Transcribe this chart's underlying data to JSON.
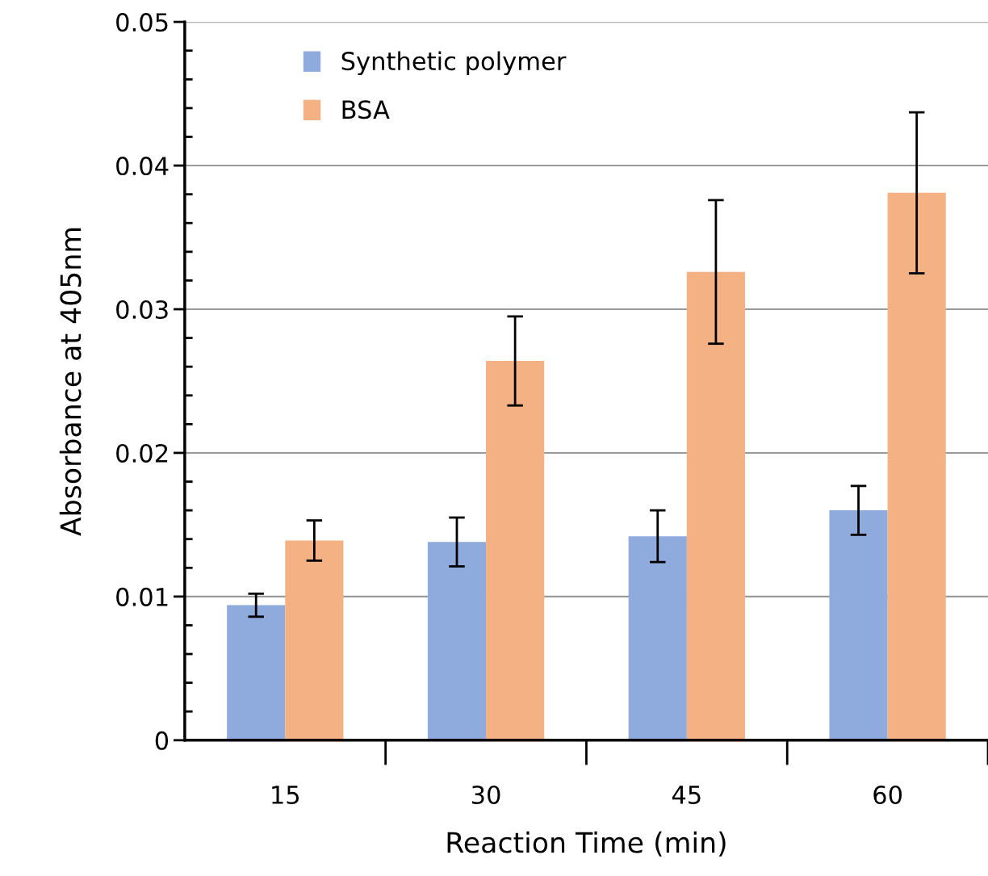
{
  "chart_data": {
    "type": "bar",
    "xlabel": "Reaction Time (min)",
    "ylabel": "Absorbance at 405nm",
    "categories": [
      "15",
      "30",
      "45",
      "60"
    ],
    "series": [
      {
        "name": "Synthetic polymer",
        "color": "#8faadc",
        "values": [
          0.0094,
          0.0138,
          0.0142,
          0.016
        ],
        "errors": [
          0.0008,
          0.0017,
          0.0018,
          0.0017
        ]
      },
      {
        "name": "BSA",
        "color": "#f4b183",
        "values": [
          0.0139,
          0.0264,
          0.0326,
          0.0381
        ],
        "errors": [
          0.0014,
          0.0031,
          0.005,
          0.0056
        ]
      }
    ],
    "ylim": [
      0,
      0.05
    ],
    "yticks": [
      {
        "value": 0,
        "label": "0"
      },
      0.01,
      0.02,
      0.03,
      0.04,
      0.05
    ],
    "grid": "y",
    "legend": "top left"
  }
}
